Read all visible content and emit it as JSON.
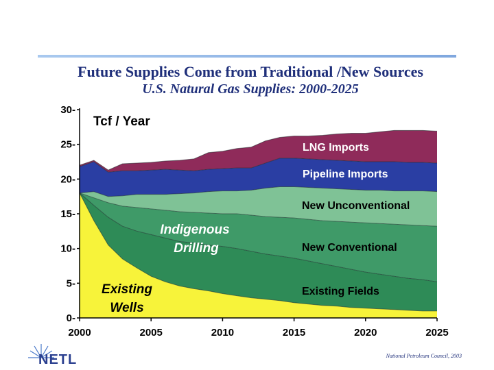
{
  "header": {
    "title": "Future Supplies Come from Traditional /New Sources",
    "subtitle": "U.S. Natural Gas Supplies: 2000-2025"
  },
  "footer": {
    "logo_text": "NETL",
    "source": "National Petroleum Council, 2003"
  },
  "chart_data": {
    "type": "area",
    "title": "U.S. Natural Gas Supplies: 2000-2025",
    "ylabel": "Tcf / Year",
    "xlabel": "",
    "xlim": [
      2000,
      2025
    ],
    "ylim": [
      0,
      30
    ],
    "x_ticks": [
      2000,
      2005,
      2010,
      2015,
      2020,
      2025
    ],
    "y_ticks": [
      0,
      5,
      10,
      15,
      20,
      25,
      30
    ],
    "stacking": "cumulative top-of-band values",
    "x": [
      2000,
      2001,
      2002,
      2003,
      2004,
      2005,
      2006,
      2007,
      2008,
      2009,
      2010,
      2011,
      2012,
      2013,
      2014,
      2015,
      2016,
      2017,
      2018,
      2019,
      2020,
      2021,
      2022,
      2023,
      2024,
      2025
    ],
    "series": [
      {
        "name": "Existing Wells",
        "color": "#f7f33a",
        "values": [
          18.0,
          14.0,
          10.5,
          8.5,
          7.2,
          6.0,
          5.2,
          4.6,
          4.2,
          3.9,
          3.5,
          3.2,
          2.9,
          2.7,
          2.5,
          2.2,
          2.0,
          1.8,
          1.7,
          1.5,
          1.4,
          1.3,
          1.2,
          1.1,
          1.0,
          1.0
        ]
      },
      {
        "name": "Existing Fields",
        "color": "#2e8b57",
        "values": [
          18.0,
          16.2,
          14.5,
          13.2,
          12.5,
          12.0,
          11.5,
          11.0,
          10.8,
          10.5,
          10.3,
          10.0,
          9.6,
          9.2,
          8.9,
          8.6,
          8.2,
          7.8,
          7.4,
          7.0,
          6.6,
          6.3,
          6.0,
          5.7,
          5.5,
          5.2
        ]
      },
      {
        "name": "New Conventional",
        "color": "#3f9a68",
        "values": [
          18.0,
          17.3,
          16.6,
          16.1,
          15.9,
          15.7,
          15.5,
          15.3,
          15.2,
          15.1,
          15.0,
          15.0,
          14.8,
          14.6,
          14.5,
          14.4,
          14.2,
          14.0,
          13.9,
          13.8,
          13.7,
          13.6,
          13.5,
          13.4,
          13.3,
          13.2
        ]
      },
      {
        "name": "New Unconventional",
        "color": "#7fc296",
        "values": [
          18.0,
          18.2,
          17.5,
          17.6,
          17.8,
          17.8,
          17.8,
          17.9,
          18.0,
          18.2,
          18.3,
          18.3,
          18.4,
          18.7,
          18.9,
          18.9,
          18.8,
          18.7,
          18.6,
          18.5,
          18.4,
          18.4,
          18.3,
          18.3,
          18.3,
          18.2
        ]
      },
      {
        "name": "Pipeline Imports",
        "color": "#2a3ea3",
        "values": [
          21.8,
          22.5,
          21.0,
          21.2,
          21.2,
          21.3,
          21.4,
          21.3,
          21.2,
          21.4,
          21.5,
          21.6,
          21.6,
          22.3,
          23.0,
          23.0,
          22.9,
          22.8,
          22.7,
          22.6,
          22.5,
          22.5,
          22.5,
          22.4,
          22.4,
          22.3
        ]
      },
      {
        "name": "LNG Imports",
        "color": "#8f2b5a",
        "values": [
          22.0,
          22.7,
          21.3,
          22.2,
          22.3,
          22.4,
          22.6,
          22.7,
          22.9,
          23.8,
          24.0,
          24.4,
          24.6,
          25.5,
          26.0,
          26.2,
          26.2,
          26.3,
          26.5,
          26.6,
          26.6,
          26.8,
          27.0,
          27.0,
          27.0,
          26.9
        ]
      }
    ],
    "annotations": {
      "unit": "Tcf / Year",
      "lng": "LNG Imports",
      "pipeline": "Pipeline Imports",
      "new_unconventional": "New Unconventional",
      "new_conventional": "New Conventional",
      "existing_fields": "Existing Fields",
      "indigenous_1": "Indigenous",
      "indigenous_2": "Drilling",
      "existing_wells_1": "Existing",
      "existing_wells_2": "Wells"
    }
  }
}
